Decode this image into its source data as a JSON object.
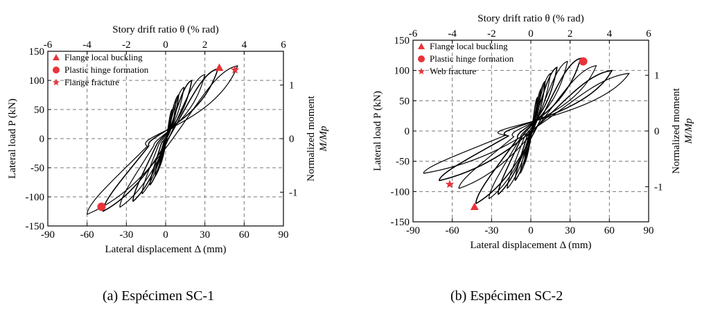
{
  "chart_data": [
    {
      "type": "line",
      "top_axis": {
        "label": "Story drift ratio θ (% rad)",
        "ticks": [
          -6,
          -4,
          -2,
          0,
          2,
          4,
          6
        ]
      },
      "xlabel": "Lateral displacement Δ (mm)",
      "ylabel": "Lateral load P (kN)",
      "right_axis": {
        "label_line1": "Normalized moment",
        "label_line2": "M/Mp",
        "ticks": [
          -1,
          0,
          1
        ]
      },
      "xlim": [
        -90,
        90
      ],
      "ylim": [
        -150,
        150
      ],
      "x_ticks": [
        -90,
        -60,
        -30,
        0,
        30,
        60,
        90
      ],
      "y_ticks": [
        -150,
        -100,
        -50,
        0,
        50,
        100,
        150
      ],
      "grid": true,
      "legend_position": "top-left",
      "legend": [
        {
          "marker": "triangle",
          "label": "Flange local buckling"
        },
        {
          "marker": "circle",
          "label": "Plastic hinge formation"
        },
        {
          "marker": "star",
          "label": "Flange fracture"
        }
      ],
      "peaks_positive": [
        [
          5,
          50
        ],
        [
          8,
          65
        ],
        [
          10,
          75
        ],
        [
          14,
          88
        ],
        [
          20,
          100
        ],
        [
          30,
          110
        ],
        [
          40,
          120
        ],
        [
          55,
          125
        ],
        [
          72,
          112
        ]
      ],
      "peaks_negative": [
        [
          -5,
          -50
        ],
        [
          -8,
          -65
        ],
        [
          -12,
          -80
        ],
        [
          -18,
          -95
        ],
        [
          -25,
          -108
        ],
        [
          -35,
          -118
        ],
        [
          -48,
          -125
        ],
        [
          -60,
          -130
        ]
      ],
      "markers": [
        {
          "type": "triangle",
          "x": 41,
          "y": 122
        },
        {
          "type": "star",
          "x": 53,
          "y": 118
        },
        {
          "type": "circle",
          "x": -49,
          "y": -117
        }
      ],
      "caption": "(a) Espécimen SC-1"
    },
    {
      "type": "line",
      "top_axis": {
        "label": "Story drift ratio θ (% rad)",
        "ticks": [
          -6,
          -4,
          -2,
          0,
          2,
          4,
          6
        ]
      },
      "xlabel": "Lateral displacement Δ (mm)",
      "ylabel": "Lateral load P (kN)",
      "right_axis": {
        "label_line1": "Normalized moment",
        "label_line2": "M/Mp",
        "ticks": [
          -1,
          0,
          1
        ]
      },
      "xlim": [
        -90,
        90
      ],
      "ylim": [
        -150,
        150
      ],
      "x_ticks": [
        -90,
        -60,
        -30,
        0,
        30,
        60,
        90
      ],
      "y_ticks": [
        -150,
        -100,
        -50,
        0,
        50,
        100,
        150
      ],
      "grid": true,
      "legend_position": "top-left",
      "legend": [
        {
          "marker": "triangle",
          "label": "Flange local buckling"
        },
        {
          "marker": "circle",
          "label": "Plastic hinge formation"
        },
        {
          "marker": "star",
          "label": "Web fracture"
        }
      ],
      "peaks_positive": [
        [
          5,
          55
        ],
        [
          8,
          70
        ],
        [
          11,
          82
        ],
        [
          15,
          95
        ],
        [
          20,
          105
        ],
        [
          28,
          115
        ],
        [
          38,
          120
        ],
        [
          50,
          108
        ],
        [
          62,
          100
        ],
        [
          75,
          95
        ],
        [
          82,
          90
        ]
      ],
      "peaks_negative": [
        [
          -5,
          -55
        ],
        [
          -8,
          -70
        ],
        [
          -12,
          -82
        ],
        [
          -18,
          -95
        ],
        [
          -25,
          -105
        ],
        [
          -32,
          -112
        ],
        [
          -42,
          -120
        ],
        [
          -55,
          -95
        ],
        [
          -70,
          -82
        ],
        [
          -82,
          -70
        ]
      ],
      "markers": [
        {
          "type": "circle",
          "x": 40,
          "y": 115
        },
        {
          "type": "star",
          "x": -62,
          "y": -88
        },
        {
          "type": "triangle",
          "x": -43,
          "y": -125
        }
      ],
      "caption": "(b) Espécimen SC-2"
    }
  ]
}
